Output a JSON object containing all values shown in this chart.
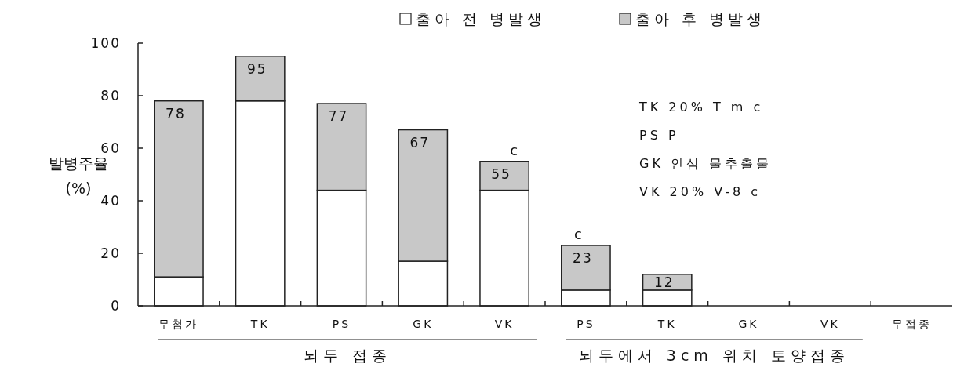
{
  "chart_data": {
    "type": "bar",
    "stacked": true,
    "ylabel": "발병주율 (%)",
    "categories": [
      "무첨가",
      "TK",
      "PS",
      "GK",
      "VK",
      "PS",
      "TK",
      "GK",
      "VK",
      "무접종"
    ],
    "series": [
      {
        "name": "출아 전 병발생",
        "color": "#ffffff",
        "values": [
          11,
          78,
          44,
          17,
          44,
          6,
          6,
          0,
          0,
          0
        ]
      },
      {
        "name": "출아 후 병발생",
        "color": "#c8c8c8",
        "values": [
          67,
          17,
          33,
          50,
          11,
          17,
          6,
          0,
          0,
          0
        ]
      }
    ],
    "totals": [
      "78",
      "95",
      "77",
      "67",
      "55",
      "23",
      "12",
      null,
      null,
      null
    ],
    "ylim": [
      0,
      100
    ],
    "yticks": [
      0,
      20,
      40,
      60,
      80,
      100
    ],
    "legend": "top",
    "grid": false,
    "annotations": [
      "뇌두 접종",
      "뇌두에서 3cm 위치 토양접종",
      "TK 20% T m c",
      "PS P",
      "GK 인삼 물추출물",
      "VK 20% V-8 c",
      {
        "text": "c",
        "x": "VK",
        "y": 55
      },
      "c"
    ]
  }
}
